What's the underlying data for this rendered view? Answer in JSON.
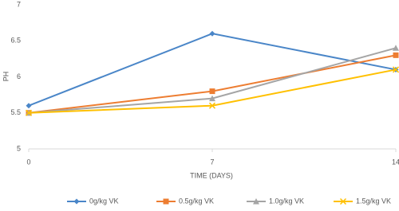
{
  "chart_data": {
    "type": "line",
    "x_label": "TIME (DAYS)",
    "y_label": "PH",
    "x": [
      0,
      7,
      14
    ],
    "xlim": [
      0,
      14
    ],
    "xticks": [
      0,
      7,
      14
    ],
    "ylim": [
      5,
      7
    ],
    "yticks": [
      5,
      5.5,
      6,
      6.5,
      7
    ],
    "grid": false,
    "legend": "bottom",
    "series": [
      {
        "name": "0g/kg VK",
        "color": "#4a86c8",
        "marker": "diamond",
        "values": [
          5.6,
          6.6,
          6.1
        ]
      },
      {
        "name": "0.5g/kg VK",
        "color": "#ed7d31",
        "marker": "square",
        "values": [
          5.5,
          5.8,
          6.3
        ]
      },
      {
        "name": "1.0g/kg VK",
        "color": "#a5a5a5",
        "marker": "triangle",
        "values": [
          5.5,
          5.7,
          6.4
        ]
      },
      {
        "name": "1.5g/kg VK",
        "color": "#ffc000",
        "marker": "x",
        "values": [
          5.5,
          5.6,
          6.1
        ]
      }
    ]
  }
}
